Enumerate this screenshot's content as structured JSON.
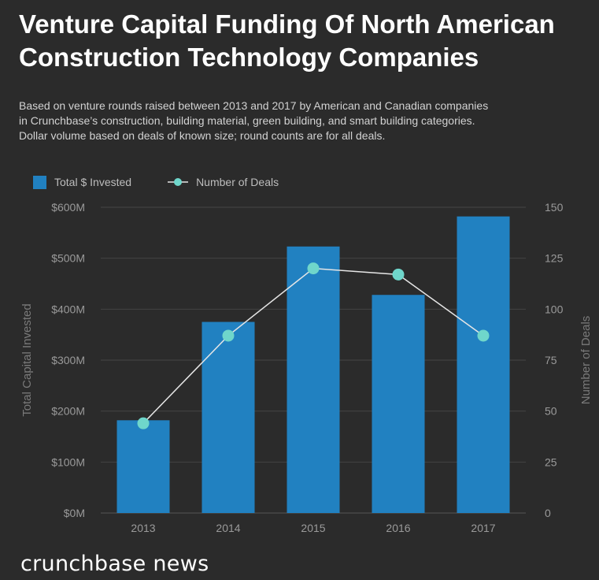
{
  "header": {
    "title_line1": "Venture Capital Funding Of North American",
    "title_line2": "Construction Technology Companies",
    "subtitle_line1": "Based on venture rounds raised between 2013 and 2017 by American and Canadian companies",
    "subtitle_line2": "in Crunchbase’s construction, building material, green building, and smart building categories.",
    "subtitle_line3": "Dollar volume based on deals of known size; round counts are for all deals."
  },
  "legend": {
    "bar_label": "Total $ Invested",
    "line_label": "Number of Deals"
  },
  "chart_data": {
    "type": "bar",
    "categories": [
      "2013",
      "2014",
      "2015",
      "2016",
      "2017"
    ],
    "series": [
      {
        "name": "Total $ Invested",
        "type": "bar",
        "axis": "left",
        "unit": "$M",
        "values": [
          182,
          375,
          523,
          428,
          582
        ]
      },
      {
        "name": "Number of Deals",
        "type": "line",
        "axis": "right",
        "values": [
          44,
          87,
          120,
          117,
          87
        ]
      }
    ],
    "ylabel": "Total Capital Invested",
    "ylabel_right": "Number of Deals",
    "ylim": [
      0,
      600
    ],
    "ylim_right": [
      0,
      150
    ],
    "yticks": [
      "$0M",
      "$100M",
      "$200M",
      "$300M",
      "$400M",
      "$500M",
      "$600M"
    ],
    "yticks_right": [
      "0",
      "25",
      "50",
      "75",
      "100",
      "125",
      "150"
    ],
    "grid": true,
    "legend_position": "top-left",
    "colors": {
      "bar": "#2181c1",
      "line": "#e6e6e6",
      "marker": "#6fd6cb",
      "grid": "#444444"
    }
  },
  "footer": {
    "logo_text": "crunchbase news"
  }
}
